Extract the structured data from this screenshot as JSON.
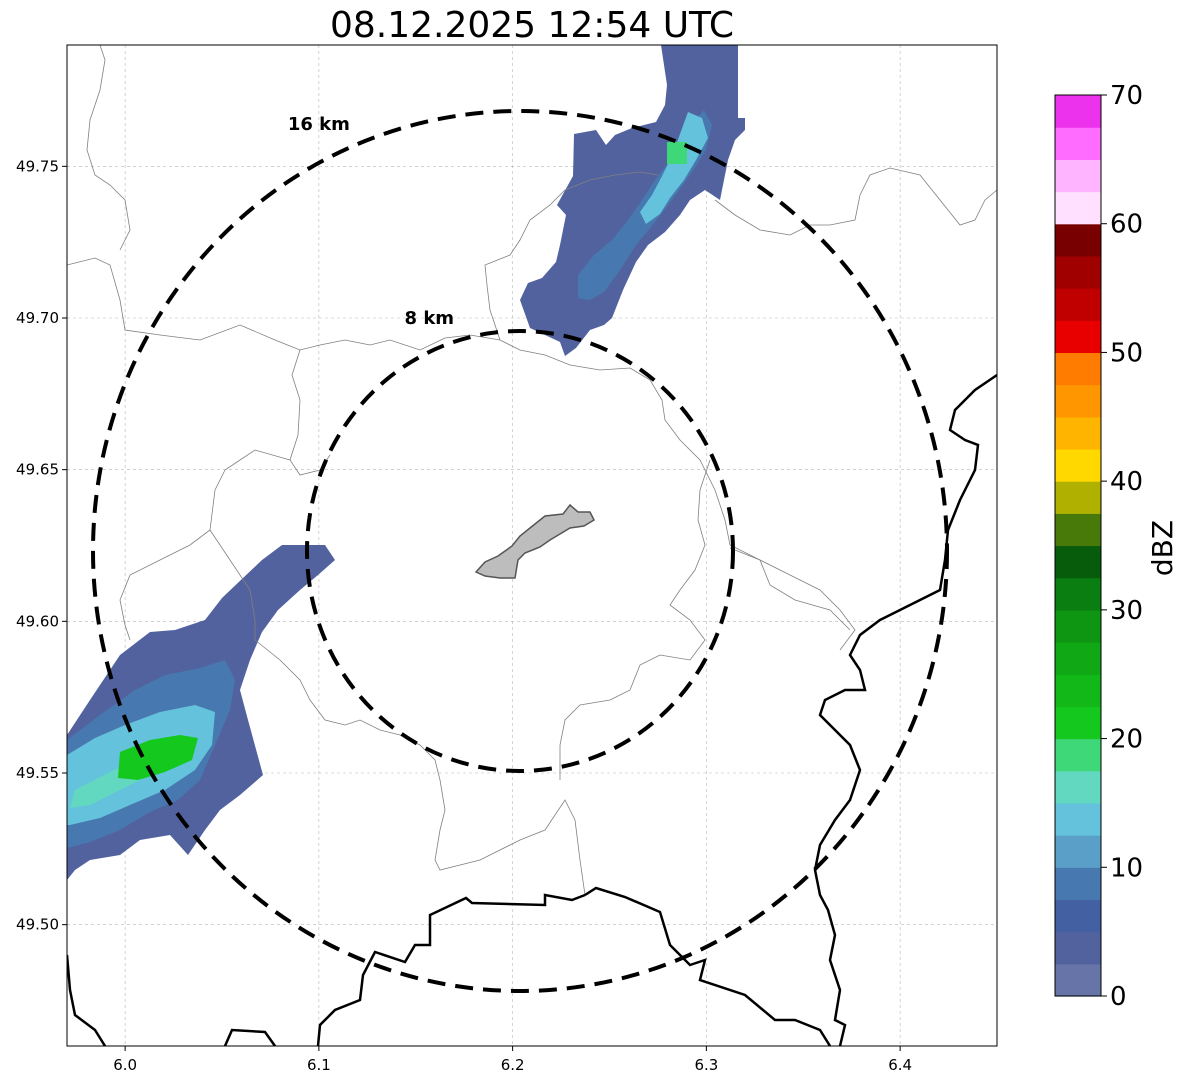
{
  "title": "08.12.2025 12:54 UTC",
  "map": {
    "lon_range": [
      5.97,
      6.45
    ],
    "lat_range": [
      49.46,
      49.79
    ],
    "x_ticks": [
      {
        "value": 6.0,
        "label": "6.0"
      },
      {
        "value": 6.1,
        "label": "6.1"
      },
      {
        "value": 6.2,
        "label": "6.2"
      },
      {
        "value": 6.3,
        "label": "6.3"
      },
      {
        "value": 6.4,
        "label": "6.4"
      }
    ],
    "y_ticks": [
      {
        "value": 49.5,
        "label": "49.50"
      },
      {
        "value": 49.55,
        "label": "49.55"
      },
      {
        "value": 49.6,
        "label": "49.60"
      },
      {
        "value": 49.65,
        "label": "49.65"
      },
      {
        "value": 49.7,
        "label": "49.70"
      },
      {
        "value": 49.75,
        "label": "49.75"
      }
    ],
    "grid": true,
    "range_rings": [
      {
        "label": "8 km",
        "label_lon": 6.157,
        "label_lat": 49.7
      },
      {
        "label": "16 km",
        "label_lon": 6.1,
        "label_lat": 49.764
      }
    ],
    "center_feature": "grey-city-outline"
  },
  "colorbar": {
    "label": "dBZ",
    "min": 0,
    "max": 70,
    "tick_values": [
      0,
      10,
      20,
      30,
      40,
      50,
      60,
      70
    ],
    "tick_labels": [
      "0",
      "10",
      "20",
      "30",
      "40",
      "50",
      "60",
      "70"
    ],
    "colors": [
      "#6674a8",
      "#52629e",
      "#4360a3",
      "#4878b0",
      "#5a9fc8",
      "#64c2dc",
      "#62d8c0",
      "#3fd878",
      "#14c81e",
      "#12b818",
      "#10a814",
      "#0e9612",
      "#0a7e10",
      "#065c0a",
      "#487a0a",
      "#b0b000",
      "#ffd800",
      "#ffb400",
      "#ff9600",
      "#ff7c00",
      "#e80000",
      "#c00000",
      "#a00000",
      "#780000",
      "#ffe0ff",
      "#ffb4ff",
      "#ff6cff",
      "#ec32ec"
    ]
  }
}
